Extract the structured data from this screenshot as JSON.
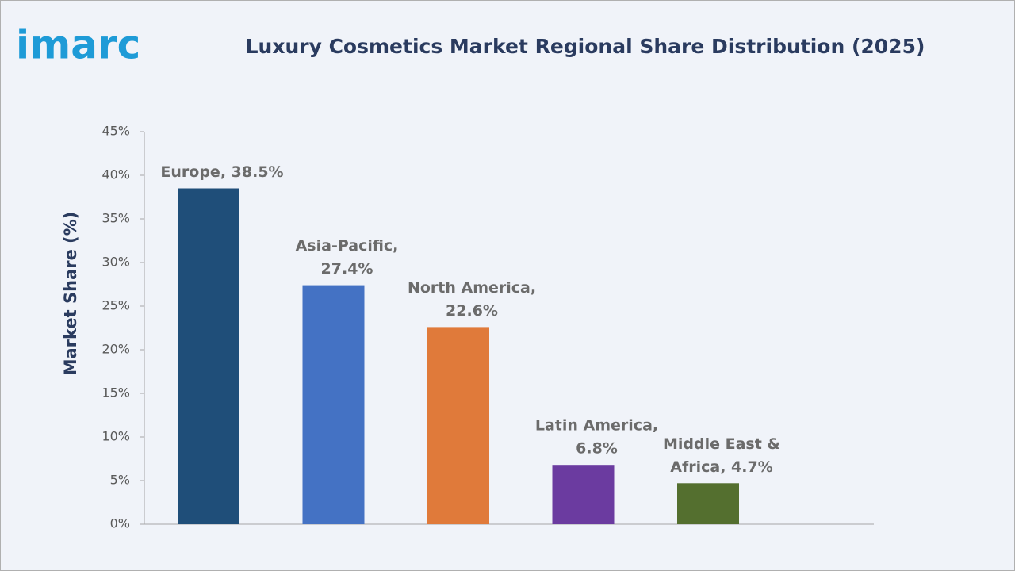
{
  "logo": "imarc",
  "chart_data": {
    "type": "bar",
    "title": "Luxury Cosmetics Market Regional Share Distribution (2025)",
    "y_label": "Market Share (%)",
    "values": [
      38.5,
      27.4,
      22.6,
      6.8,
      4.7
    ],
    "value_labels": [
      [
        "Europe, 38.5%"
      ],
      [
        "Asia-Pacific,",
        "27.4%"
      ],
      [
        "North America,",
        "22.6%"
      ],
      [
        "Latin America,",
        "6.8%"
      ],
      [
        "Middle East &",
        "Africa, 4.7%"
      ]
    ],
    "colors": [
      "#1f4e79",
      "#4472c4",
      "#e07a3a",
      "#6b3ba0",
      "#546f2f"
    ],
    "ylim": [
      0,
      45
    ],
    "yticks": [
      {
        "value": 0,
        "label": "0%"
      },
      {
        "value": 5,
        "label": "5%"
      },
      {
        "value": 10,
        "label": "10%"
      },
      {
        "value": 15,
        "label": "15%"
      },
      {
        "value": 20,
        "label": "20%"
      },
      {
        "value": 25,
        "label": "25%"
      },
      {
        "value": 30,
        "label": "30%"
      },
      {
        "value": 35,
        "label": "35%"
      },
      {
        "value": 40,
        "label": "40%"
      },
      {
        "value": 45,
        "label": "45%"
      }
    ],
    "grid": false
  }
}
